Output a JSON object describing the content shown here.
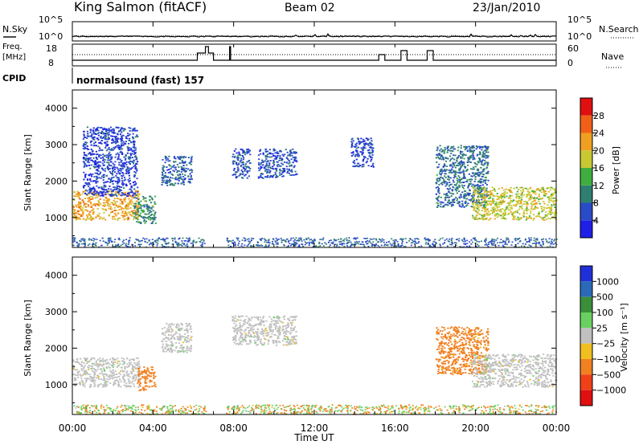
{
  "header": {
    "station": "King Salmon (fitACF)",
    "beam": "Beam 02",
    "date": "23/Jan/2010"
  },
  "noise_panel": {
    "left_label": "N.Sky",
    "right_label": "N.Search",
    "ticks": [
      "10^5",
      "10^0"
    ]
  },
  "freq_panel": {
    "left_label": "Freq.",
    "left_unit": "[MHz]",
    "left_ticks": [
      "18",
      "8"
    ],
    "right_label": "Nave",
    "right_ticks": [
      "60",
      "0"
    ]
  },
  "cpid": {
    "label": "CPID",
    "program": "normalsound (fast) 157"
  },
  "colors": {
    "power_scale": [
      "#1f1fe6",
      "#2a4bc8",
      "#2f7f70",
      "#3fae3f",
      "#c8c832",
      "#f0a020",
      "#f06018",
      "#e01010"
    ],
    "velocity_scale": [
      "#2030d8",
      "#2a6ab8",
      "#3a8f3a",
      "#6ad060",
      "#c0c0c0",
      "#f0c020",
      "#f08020",
      "#f04018",
      "#e01010"
    ]
  },
  "chart_data": [
    {
      "type": "heatmap",
      "name": "power",
      "xlabel": "Time UT",
      "ylabel": "Slant Range [km]",
      "x_ticks": [
        "00:00",
        "04:00",
        "08:00",
        "12:00",
        "16:00",
        "20:00",
        "00:00"
      ],
      "xlim_hours": [
        0,
        24
      ],
      "ylim": [
        180,
        4500
      ],
      "y_ticks": [
        1000,
        2000,
        3000,
        4000
      ],
      "colorbar": {
        "label": "Power [dB]",
        "ticks": [
          4,
          8,
          12,
          16,
          20,
          24,
          28
        ],
        "range": [
          0,
          30
        ]
      },
      "echo_regions": [
        {
          "t": [
            0.0,
            3.3
          ],
          "range": [
            950,
            1750
          ],
          "level": 20
        },
        {
          "t": [
            0.5,
            3.2
          ],
          "range": [
            1600,
            3500
          ],
          "level": 5
        },
        {
          "t": [
            3.0,
            4.1
          ],
          "range": [
            850,
            1600
          ],
          "level": 10
        },
        {
          "t": [
            4.4,
            5.9
          ],
          "range": [
            1900,
            2700
          ],
          "level": 7
        },
        {
          "t": [
            7.9,
            8.8
          ],
          "range": [
            2100,
            2900
          ],
          "level": 6
        },
        {
          "t": [
            9.2,
            11.1
          ],
          "range": [
            2100,
            2900
          ],
          "level": 6
        },
        {
          "t": [
            13.8,
            14.9
          ],
          "range": [
            2400,
            3200
          ],
          "level": 5
        },
        {
          "t": [
            18.0,
            20.6
          ],
          "range": [
            1300,
            3000
          ],
          "level": 8
        },
        {
          "t": [
            19.8,
            24.0
          ],
          "range": [
            950,
            1850
          ],
          "level": 17
        }
      ]
    },
    {
      "type": "heatmap",
      "name": "velocity",
      "xlabel": "Time UT",
      "ylabel": "Slant Range [km]",
      "x_ticks": [
        "00:00",
        "04:00",
        "08:00",
        "12:00",
        "16:00",
        "20:00",
        "00:00"
      ],
      "xlim_hours": [
        0,
        24
      ],
      "ylim": [
        180,
        4500
      ],
      "y_ticks": [
        1000,
        2000,
        3000,
        4000
      ],
      "colorbar": {
        "label": "Velocity [m s⁻¹]",
        "ticks": [
          "1000",
          "500",
          "100",
          "25",
          "−25",
          "−100",
          "−500",
          "−1000"
        ]
      },
      "echo_regions": [
        {
          "t": [
            0.0,
            3.3
          ],
          "range": [
            950,
            1750
          ],
          "velocity": 0
        },
        {
          "t": [
            3.2,
            4.1
          ],
          "range": [
            850,
            1500
          ],
          "velocity": -150
        },
        {
          "t": [
            4.4,
            5.9
          ],
          "range": [
            1900,
            2700
          ],
          "velocity": 0
        },
        {
          "t": [
            7.9,
            11.1
          ],
          "range": [
            2100,
            2900
          ],
          "velocity": 0
        },
        {
          "t": [
            18.0,
            20.6
          ],
          "range": [
            1300,
            2600
          ],
          "velocity": -120
        },
        {
          "t": [
            19.8,
            24.0
          ],
          "range": [
            950,
            1850
          ],
          "velocity": 0
        }
      ]
    }
  ]
}
